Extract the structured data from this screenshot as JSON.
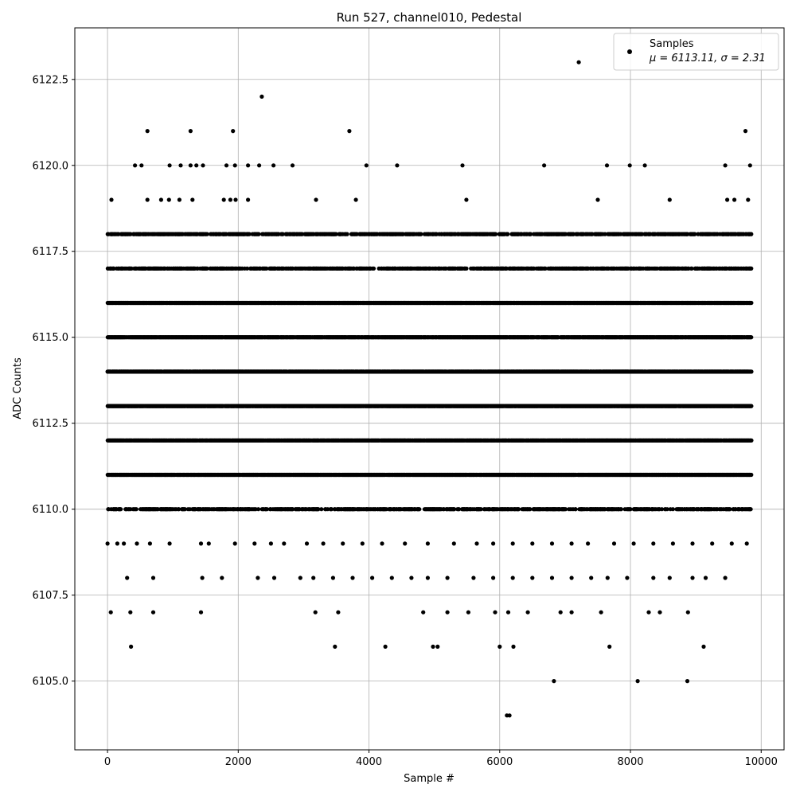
{
  "chart_data": {
    "type": "scatter",
    "title": "Run 527, channel010, Pedestal",
    "xlabel": "Sample #",
    "ylabel": "ADC Counts",
    "xlim": [
      -500,
      10350
    ],
    "ylim": [
      6103,
      6124
    ],
    "xticks": [
      0,
      2000,
      4000,
      6000,
      8000,
      10000
    ],
    "yticks": [
      6105.0,
      6107.5,
      6110.0,
      6112.5,
      6115.0,
      6117.5,
      6120.0,
      6122.5
    ],
    "grid": true,
    "legend_position": "top-right",
    "legend": {
      "series_name": "Samples",
      "stats_text": "μ = 6113.11, σ = 2.31"
    },
    "series": [
      {
        "name": "Samples",
        "color": "#000000",
        "n_samples": 9850,
        "dense_levels": [
          6110,
          6111,
          6112,
          6113,
          6114,
          6115,
          6116,
          6117,
          6118
        ],
        "sparse_points": [
          [
            50,
            6107
          ],
          [
            350,
            6107
          ],
          [
            700,
            6107
          ],
          [
            1430,
            6107
          ],
          [
            3180,
            6107
          ],
          [
            3530,
            6107
          ],
          [
            4830,
            6107
          ],
          [
            5200,
            6107
          ],
          [
            5520,
            6107
          ],
          [
            5930,
            6107
          ],
          [
            6130,
            6107
          ],
          [
            6430,
            6107
          ],
          [
            6930,
            6107
          ],
          [
            7100,
            6107
          ],
          [
            7550,
            6107
          ],
          [
            8280,
            6107
          ],
          [
            8450,
            6107
          ],
          [
            8880,
            6107
          ],
          [
            360,
            6106
          ],
          [
            3480,
            6106
          ],
          [
            4250,
            6106
          ],
          [
            4980,
            6106
          ],
          [
            5050,
            6106
          ],
          [
            6000,
            6106
          ],
          [
            6210,
            6106
          ],
          [
            7680,
            6106
          ],
          [
            9120,
            6106
          ],
          [
            6830,
            6105
          ],
          [
            8110,
            6105
          ],
          [
            8870,
            6105
          ],
          [
            6110,
            6104
          ],
          [
            6150,
            6104
          ],
          [
            2360,
            6122
          ],
          [
            7210,
            6123
          ],
          [
            610,
            6121
          ],
          [
            1270,
            6121
          ],
          [
            1920,
            6121
          ],
          [
            3700,
            6121
          ],
          [
            9760,
            6121
          ],
          [
            420,
            6120
          ],
          [
            520,
            6120
          ],
          [
            950,
            6120
          ],
          [
            1120,
            6120
          ],
          [
            1270,
            6120
          ],
          [
            1360,
            6120
          ],
          [
            1460,
            6120
          ],
          [
            1820,
            6120
          ],
          [
            1950,
            6120
          ],
          [
            2150,
            6120
          ],
          [
            2320,
            6120
          ],
          [
            2540,
            6120
          ],
          [
            2830,
            6120
          ],
          [
            3960,
            6120
          ],
          [
            4430,
            6120
          ],
          [
            5430,
            6120
          ],
          [
            6680,
            6120
          ],
          [
            7640,
            6120
          ],
          [
            7990,
            6120
          ],
          [
            8220,
            6120
          ],
          [
            9450,
            6120
          ],
          [
            9830,
            6120
          ],
          [
            60,
            6119
          ],
          [
            610,
            6119
          ],
          [
            820,
            6119
          ],
          [
            940,
            6119
          ],
          [
            1100,
            6119
          ],
          [
            1300,
            6119
          ],
          [
            1780,
            6119
          ],
          [
            1880,
            6119
          ],
          [
            1960,
            6119
          ],
          [
            2150,
            6119
          ],
          [
            3190,
            6119
          ],
          [
            3800,
            6119
          ],
          [
            5490,
            6119
          ],
          [
            7500,
            6119
          ],
          [
            8600,
            6119
          ],
          [
            9480,
            6119
          ],
          [
            9590,
            6119
          ],
          [
            9800,
            6119
          ]
        ],
        "edge_points": [
          [
            0,
            6109
          ],
          [
            150,
            6109
          ],
          [
            250,
            6109
          ],
          [
            450,
            6109
          ],
          [
            650,
            6109
          ],
          [
            950,
            6109
          ],
          [
            1430,
            6109
          ],
          [
            1550,
            6109
          ],
          [
            1950,
            6109
          ],
          [
            2250,
            6109
          ],
          [
            2500,
            6109
          ],
          [
            2700,
            6109
          ],
          [
            3050,
            6109
          ],
          [
            3300,
            6109
          ],
          [
            3600,
            6109
          ],
          [
            3900,
            6109
          ],
          [
            4200,
            6109
          ],
          [
            4550,
            6109
          ],
          [
            4900,
            6109
          ],
          [
            5300,
            6109
          ],
          [
            5650,
            6109
          ],
          [
            5900,
            6109
          ],
          [
            6200,
            6109
          ],
          [
            6500,
            6109
          ],
          [
            6800,
            6109
          ],
          [
            7100,
            6109
          ],
          [
            7350,
            6109
          ],
          [
            7750,
            6109
          ],
          [
            8050,
            6109
          ],
          [
            8350,
            6109
          ],
          [
            8650,
            6109
          ],
          [
            8950,
            6109
          ],
          [
            9250,
            6109
          ],
          [
            9550,
            6109
          ],
          [
            9780,
            6109
          ],
          [
            300,
            6108
          ],
          [
            700,
            6108
          ],
          [
            1450,
            6108
          ],
          [
            1750,
            6108
          ],
          [
            2300,
            6108
          ],
          [
            2550,
            6108
          ],
          [
            2950,
            6108
          ],
          [
            3150,
            6108
          ],
          [
            3450,
            6108
          ],
          [
            3750,
            6108
          ],
          [
            4050,
            6108
          ],
          [
            4350,
            6108
          ],
          [
            4650,
            6108
          ],
          [
            4900,
            6108
          ],
          [
            5200,
            6108
          ],
          [
            5600,
            6108
          ],
          [
            5900,
            6108
          ],
          [
            6200,
            6108
          ],
          [
            6500,
            6108
          ],
          [
            6800,
            6108
          ],
          [
            7100,
            6108
          ],
          [
            7400,
            6108
          ],
          [
            7650,
            6108
          ],
          [
            7950,
            6108
          ],
          [
            8350,
            6108
          ],
          [
            8600,
            6108
          ],
          [
            8950,
            6108
          ],
          [
            9150,
            6108
          ],
          [
            9450,
            6108
          ]
        ]
      }
    ]
  }
}
